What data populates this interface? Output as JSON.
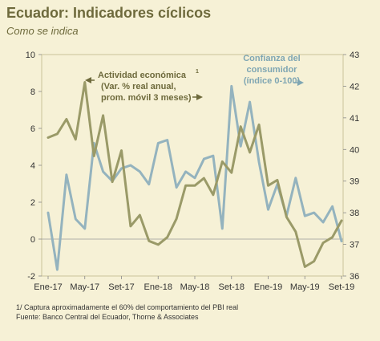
{
  "title": "Ecuador: Indicadores cíclicos",
  "subtitle": "Como se indica",
  "chart_data": {
    "type": "line",
    "x_ticks": [
      "Ene-17",
      "May-17",
      "Set-17",
      "Ene-18",
      "May-18",
      "Set-18",
      "Ene-19",
      "May-19",
      "Set-19"
    ],
    "y_left": {
      "ylim": [
        -2,
        10
      ],
      "ticks": [
        -2,
        0,
        2,
        4,
        6,
        8,
        10
      ]
    },
    "y_right": {
      "ylim": [
        36,
        43
      ],
      "ticks": [
        36,
        37,
        38,
        39,
        40,
        41,
        42,
        43
      ]
    },
    "series": [
      {
        "name": "Actividad económica (Var. % real anual, prom. móvil 3 meses)",
        "axis": "left",
        "color": "#9a9a68",
        "x": [
          "2017-01",
          "2017-02",
          "2017-03",
          "2017-04",
          "2017-05",
          "2017-06",
          "2017-07",
          "2017-08",
          "2017-09",
          "2017-10",
          "2017-11",
          "2017-12",
          "2018-01",
          "2018-02",
          "2018-03",
          "2018-04",
          "2018-05",
          "2018-06",
          "2018-07",
          "2018-08",
          "2018-09",
          "2018-10",
          "2018-11",
          "2018-12",
          "2019-01",
          "2019-02",
          "2019-03",
          "2019-04",
          "2019-05",
          "2019-06",
          "2019-07",
          "2019-08",
          "2019-09"
        ],
        "values": [
          5.5,
          5.7,
          6.5,
          5.4,
          8.5,
          4.5,
          6.7,
          3.1,
          4.8,
          0.7,
          1.3,
          -0.1,
          -0.3,
          0.1,
          1.1,
          2.9,
          2.9,
          3.3,
          2.4,
          4.2,
          3.6,
          6.1,
          4.7,
          6.2,
          2.9,
          3.2,
          1.2,
          0.4,
          -1.5,
          -1.2,
          -0.2,
          0.1,
          1.0
        ]
      },
      {
        "name": "Confianza del consumidor (índice 0-100)",
        "axis": "right",
        "color": "#94b3be",
        "x": [
          "2017-01",
          "2017-02",
          "2017-03",
          "2017-04",
          "2017-05",
          "2017-06",
          "2017-07",
          "2017-08",
          "2017-09",
          "2017-10",
          "2017-11",
          "2017-12",
          "2018-01",
          "2018-02",
          "2018-03",
          "2018-04",
          "2018-05",
          "2018-06",
          "2018-07",
          "2018-08",
          "2018-09",
          "2018-10",
          "2018-11",
          "2018-12",
          "2019-01",
          "2019-02",
          "2019-03",
          "2019-04",
          "2019-05",
          "2019-06",
          "2019-07",
          "2019-08",
          "2019-09"
        ],
        "values": [
          38.0,
          36.2,
          39.2,
          37.8,
          37.5,
          40.2,
          39.3,
          39.0,
          39.4,
          39.5,
          39.3,
          38.9,
          40.2,
          40.3,
          38.8,
          39.3,
          39.1,
          39.7,
          39.8,
          37.5,
          42.0,
          40.1,
          41.5,
          39.6,
          38.1,
          38.9,
          37.9,
          39.1,
          37.9,
          38.0,
          37.7,
          38.2,
          37.1
        ]
      }
    ],
    "annotations": {
      "actividad": [
        "Actividad económica",
        "1",
        "(Var. % real anual,",
        "prom. móvil 3 meses)"
      ],
      "confianza": [
        "Confianza del",
        "consumidor",
        "(índice 0-100)"
      ]
    }
  },
  "footnotes": [
    "1/ Captura aproximadamente el 60% del comportamiento del PBI real",
    "Fuente: Banco Central del Ecuador, Thorne & Associates"
  ]
}
